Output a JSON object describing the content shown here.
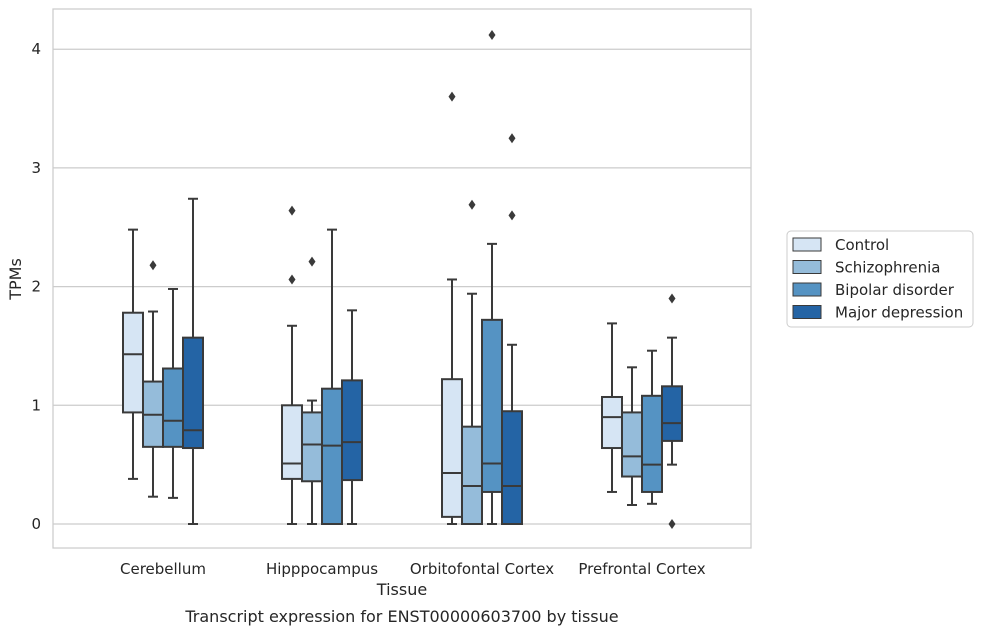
{
  "caption": "Transcript expression for ENST00000603700 by tissue",
  "chart_data": {
    "type": "box",
    "xlabel": "Tissue",
    "ylabel": "TPMs",
    "ylim": [
      -0.2,
      4.33
    ],
    "yticks": [
      0,
      1,
      2,
      3,
      4
    ],
    "grid": "horizontal",
    "legend_placement": "right",
    "categories": [
      "Cerebellum",
      "Hipppocampus",
      "Orbitofontal Cortex",
      "Prefrontal Cortex"
    ],
    "series": [
      {
        "name": "Control",
        "color": "#d6e5f4",
        "boxes": [
          {
            "whislo": 0.38,
            "q1": 0.94,
            "med": 1.43,
            "q3": 1.78,
            "whishi": 2.48,
            "fliers": []
          },
          {
            "whislo": 0.0,
            "q1": 0.38,
            "med": 0.51,
            "q3": 1.0,
            "whishi": 1.67,
            "fliers": [
              2.06,
              2.64
            ]
          },
          {
            "whislo": 0.0,
            "q1": 0.06,
            "med": 0.43,
            "q3": 1.22,
            "whishi": 2.06,
            "fliers": [
              3.6
            ]
          },
          {
            "whislo": 0.27,
            "q1": 0.64,
            "med": 0.9,
            "q3": 1.07,
            "whishi": 1.69,
            "fliers": []
          }
        ]
      },
      {
        "name": "Schizophrenia",
        "color": "#95bcda",
        "boxes": [
          {
            "whislo": 0.23,
            "q1": 0.65,
            "med": 0.92,
            "q3": 1.2,
            "whishi": 1.79,
            "fliers": [
              2.18
            ]
          },
          {
            "whislo": 0.0,
            "q1": 0.36,
            "med": 0.67,
            "q3": 0.94,
            "whishi": 1.04,
            "fliers": [
              2.21
            ]
          },
          {
            "whislo": 0.0,
            "q1": 0.0,
            "med": 0.32,
            "q3": 0.82,
            "whishi": 1.94,
            "fliers": [
              2.69
            ]
          },
          {
            "whislo": 0.16,
            "q1": 0.4,
            "med": 0.57,
            "q3": 0.94,
            "whishi": 1.32,
            "fliers": []
          }
        ]
      },
      {
        "name": "Bipolar disorder",
        "color": "#5593c3",
        "boxes": [
          {
            "whislo": 0.22,
            "q1": 0.65,
            "med": 0.87,
            "q3": 1.31,
            "whishi": 1.98,
            "fliers": []
          },
          {
            "whislo": 0.0,
            "q1": 0.0,
            "med": 0.66,
            "q3": 1.14,
            "whishi": 2.48,
            "fliers": []
          },
          {
            "whislo": 0.0,
            "q1": 0.27,
            "med": 0.51,
            "q3": 1.72,
            "whishi": 2.36,
            "fliers": [
              4.12
            ]
          },
          {
            "whislo": 0.17,
            "q1": 0.27,
            "med": 0.5,
            "q3": 1.08,
            "whishi": 1.46,
            "fliers": []
          }
        ]
      },
      {
        "name": "Major depression",
        "color": "#2464a5",
        "boxes": [
          {
            "whislo": 0.0,
            "q1": 0.64,
            "med": 0.79,
            "q3": 1.57,
            "whishi": 2.74,
            "fliers": []
          },
          {
            "whislo": 0.0,
            "q1": 0.37,
            "med": 0.69,
            "q3": 1.21,
            "whishi": 1.8,
            "fliers": []
          },
          {
            "whislo": 0.0,
            "q1": 0.0,
            "med": 0.32,
            "q3": 0.95,
            "whishi": 1.51,
            "fliers": [
              2.6,
              3.25
            ]
          },
          {
            "whislo": 0.5,
            "q1": 0.7,
            "med": 0.85,
            "q3": 1.16,
            "whishi": 1.57,
            "fliers": [
              0.0,
              1.9
            ]
          }
        ]
      }
    ]
  }
}
